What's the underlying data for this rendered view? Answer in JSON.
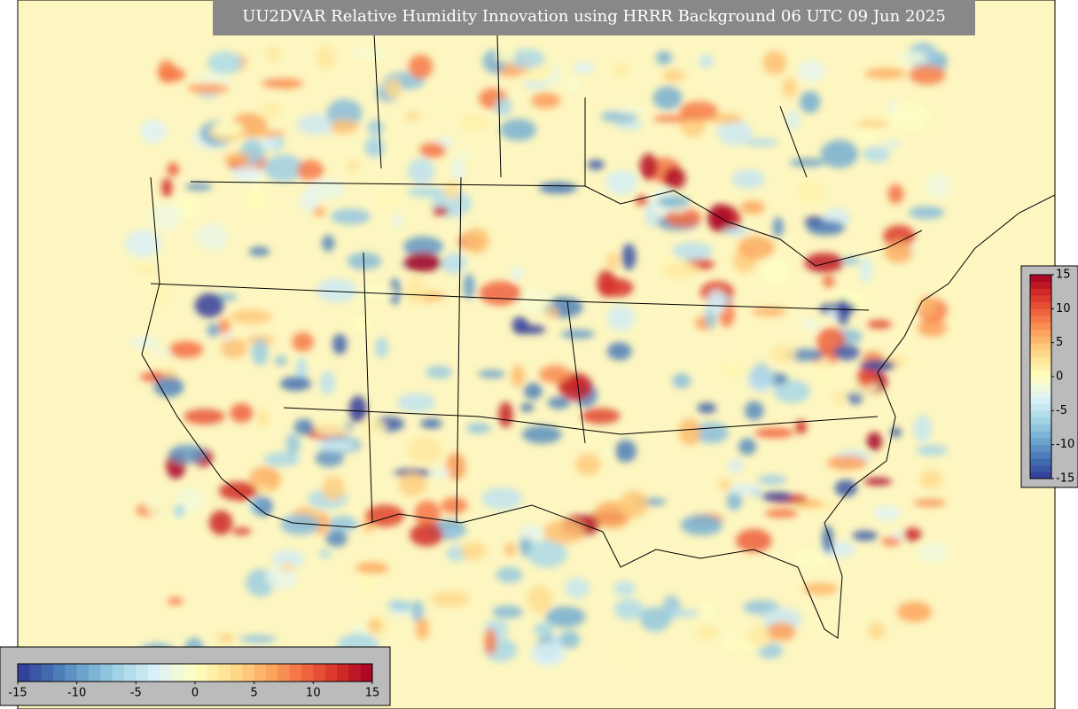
{
  "title": "UU2DVAR Relative Humidity Innovation using HRRR Background 06 UTC 09 Jun 2025",
  "colormap": [
    "#313695",
    "#4575b4",
    "#74add1",
    "#abd9e9",
    "#e0f3f8",
    "#ffffbf",
    "#fee090",
    "#fdae61",
    "#f46d43",
    "#d73027",
    "#a50026"
  ],
  "colorbars": [
    {
      "orientation": "horizontal",
      "lim": [
        -15,
        15
      ],
      "ticks": [
        -15,
        -10,
        -5,
        0,
        5,
        10,
        15
      ]
    },
    {
      "orientation": "vertical",
      "lim": [
        -15,
        15
      ],
      "ticks": [
        15,
        10,
        5,
        0,
        -5,
        -10,
        -15
      ]
    }
  ]
}
